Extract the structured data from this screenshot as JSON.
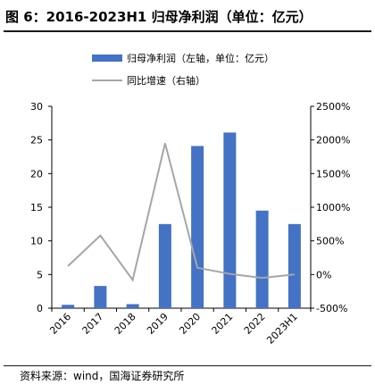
{
  "figure": {
    "title": "图 6：2016-2023H1 归母净利润（单位：亿元）",
    "source": "资料来源：wind，国海证券研究所"
  },
  "chart_data": {
    "type": "bar",
    "categories": [
      "2016",
      "2017",
      "2018",
      "2019",
      "2020",
      "2021",
      "2022",
      "2023H1"
    ],
    "series": [
      {
        "name": "归母净利润（左轴，单位：亿元）",
        "type": "bar",
        "axis": "left",
        "color": "#4472c4",
        "values": [
          0.5,
          3.3,
          0.6,
          12.5,
          24.1,
          26.1,
          14.5,
          12.5
        ]
      },
      {
        "name": "同比增速（右轴）",
        "type": "line",
        "axis": "right",
        "color": "#a6a6a6",
        "values": [
          125,
          580,
          -80,
          1950,
          100,
          10,
          -50,
          0
        ]
      }
    ],
    "y_left": {
      "min": 0,
      "max": 30,
      "ticks": [
        0,
        5,
        10,
        15,
        20,
        25,
        30
      ]
    },
    "y_right": {
      "min": -500,
      "max": 2500,
      "ticks": [
        "-500%",
        "0%",
        "500%",
        "1000%",
        "1500%",
        "2000%",
        "2500%"
      ]
    },
    "legend": "top",
    "grid": false
  }
}
